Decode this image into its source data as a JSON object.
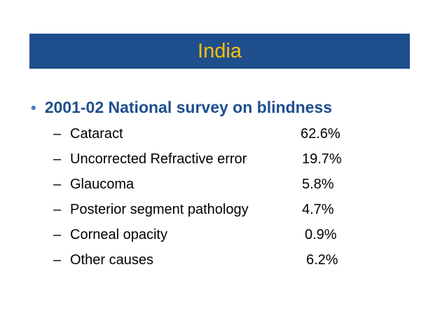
{
  "slide": {
    "title": "India",
    "heading": "2001-02 National survey on blindness",
    "bullet_symbol": "•",
    "dash_symbol": "–",
    "colors": {
      "title_bar": "#1f4e8c",
      "title_text": "#ffc000",
      "heading_text": "#1f4e8c",
      "body_text": "#000000"
    },
    "items": [
      {
        "label": "Cataract",
        "value": "62.6%"
      },
      {
        "label": "Uncorrected Refractive error",
        "value": "19.7%"
      },
      {
        "label": "Glaucoma",
        "value": "5.8%"
      },
      {
        "label": "Posterior segment pathology",
        "value": "4.7%"
      },
      {
        "label": "Corneal opacity",
        "value": "0.9%"
      },
      {
        "label": "Other causes",
        "value": "6.2%"
      }
    ]
  }
}
